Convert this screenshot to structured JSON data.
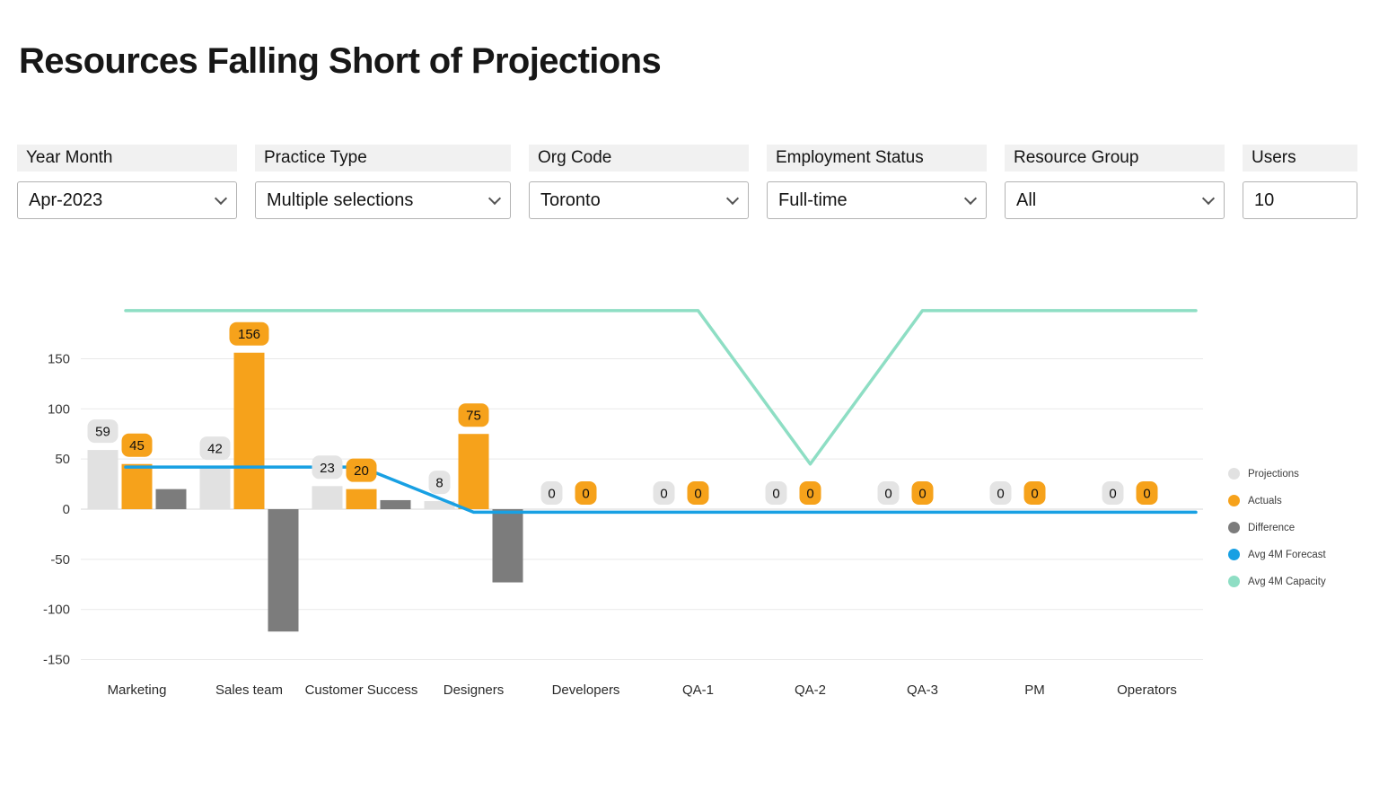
{
  "page": {
    "title": "Resources Falling Short of Projections"
  },
  "filters": [
    {
      "label": "Year Month",
      "value": "Apr-2023",
      "type": "dropdown"
    },
    {
      "label": "Practice Type",
      "value": "Multiple selections",
      "type": "dropdown"
    },
    {
      "label": "Org Code",
      "value": "Toronto",
      "type": "dropdown"
    },
    {
      "label": "Employment Status",
      "value": "Full-time",
      "type": "dropdown"
    },
    {
      "label": "Resource Group",
      "value": "All",
      "type": "dropdown"
    },
    {
      "label": "Users",
      "value": "10",
      "type": "input"
    }
  ],
  "chart_data": {
    "type": "combo-bar-line",
    "title": "Resources Falling Short of Projections",
    "categories": [
      "Marketing",
      "Sales team",
      "Customer Success",
      "Designers",
      "Developers",
      "QA-1",
      "QA-2",
      "QA-3",
      "PM",
      "Operators"
    ],
    "series": [
      {
        "name": "Projections",
        "type": "bar",
        "color": "#e1e1e1",
        "label_bg": "#e4e4e4",
        "values": [
          59,
          42,
          23,
          8,
          0,
          0,
          0,
          0,
          0,
          0
        ],
        "show_labels": true
      },
      {
        "name": "Actuals",
        "type": "bar",
        "color": "#f6a21b",
        "label_bg": "#f6a21b",
        "values": [
          45,
          156,
          20,
          75,
          0,
          0,
          0,
          0,
          0,
          0
        ],
        "show_labels": true
      },
      {
        "name": "Difference",
        "type": "bar",
        "color": "#7c7c7c",
        "values": [
          20,
          -122,
          9,
          -73,
          0,
          0,
          0,
          0,
          0,
          0
        ],
        "show_labels": false
      },
      {
        "name": "Avg 4M Forecast",
        "type": "line",
        "color": "#18a0e3",
        "values": [
          42,
          42,
          42,
          -3,
          -3,
          -3,
          -3,
          -3,
          -3,
          -3
        ]
      },
      {
        "name": "Avg 4M Capacity",
        "type": "line",
        "color": "#8edec4",
        "values": [
          198,
          198,
          198,
          198,
          198,
          198,
          45,
          198,
          198,
          198
        ]
      }
    ],
    "y_ticks": [
      150,
      100,
      50,
      0,
      -50,
      -100,
      -150
    ],
    "ylim": [
      -170,
      215
    ],
    "grid": true,
    "legend_position": "right"
  }
}
